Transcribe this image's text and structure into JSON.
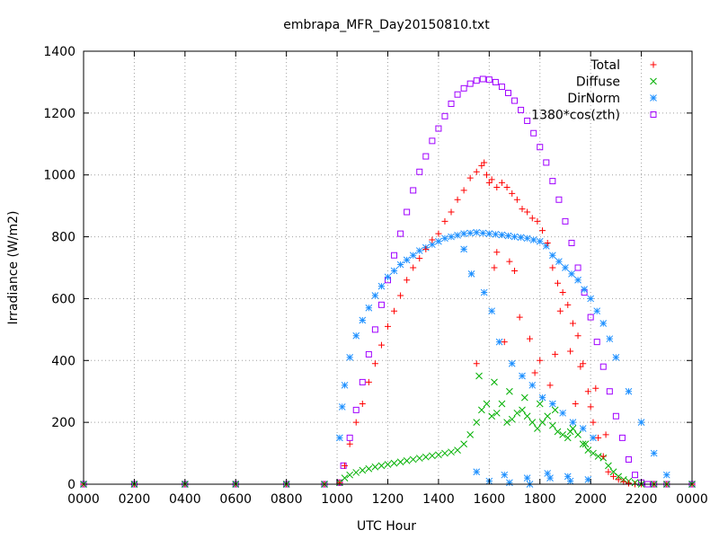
{
  "chart_data": {
    "type": "scatter",
    "title": "embrapa_MFR_Day20150810.txt",
    "xlabel": "UTC Hour",
    "ylabel": "Irradiance (W/m2)",
    "xlim": [
      0,
      24
    ],
    "ylim": [
      0,
      1400
    ],
    "grid": true,
    "legend_position": "top-right",
    "x_tick_values": [
      0,
      2,
      4,
      6,
      8,
      10,
      12,
      14,
      16,
      18,
      20,
      22,
      24
    ],
    "x_tick_labels": [
      "0000",
      "0200",
      "0400",
      "0600",
      "0800",
      "1000",
      "1200",
      "1400",
      "1600",
      "1800",
      "2000",
      "2200",
      "0000"
    ],
    "y_ticks": [
      0,
      200,
      400,
      600,
      800,
      1000,
      1200,
      1400
    ],
    "series": [
      {
        "name": "Total",
        "marker": "+",
        "color": "#ff0000",
        "x": [
          0,
          2,
          4,
          6,
          8,
          9.5,
          10.1,
          10.3,
          10.5,
          10.75,
          11,
          11.25,
          11.5,
          11.75,
          12,
          12.25,
          12.5,
          12.75,
          13,
          13.25,
          13.5,
          13.75,
          14,
          14.25,
          14.5,
          14.75,
          15,
          15.25,
          15.5,
          15.7,
          15.9,
          16.1,
          16.3,
          16.5,
          16.7,
          16.9,
          17.1,
          17.3,
          17.5,
          17.7,
          17.9,
          18.1,
          18.3,
          18.5,
          18.7,
          18.9,
          19.1,
          19.3,
          19.5,
          19.7,
          19.9,
          20.1,
          20.3,
          20.5,
          20.7,
          20.9,
          21.1,
          21.3,
          21.5,
          21.75,
          22,
          22.5,
          23,
          24,
          15.8,
          16.0,
          16.2,
          16.6,
          16.8,
          17.2,
          17.6,
          18.0,
          18.4,
          18.8,
          19.2,
          19.6,
          20.0,
          15.5,
          16.3,
          17.0,
          17.8,
          18.6,
          19.4,
          20.2,
          20.6
        ],
        "y": [
          0,
          0,
          0,
          0,
          0,
          0,
          5,
          60,
          130,
          200,
          260,
          330,
          390,
          450,
          510,
          560,
          610,
          660,
          700,
          730,
          760,
          790,
          810,
          850,
          880,
          920,
          950,
          990,
          1010,
          1030,
          1000,
          985,
          960,
          975,
          960,
          940,
          920,
          890,
          880,
          860,
          850,
          820,
          780,
          700,
          650,
          620,
          580,
          520,
          480,
          390,
          300,
          200,
          150,
          90,
          40,
          25,
          15,
          8,
          3,
          0,
          0,
          0,
          0,
          0,
          1040,
          975,
          700,
          460,
          720,
          540,
          470,
          400,
          320,
          560,
          430,
          380,
          250,
          390,
          750,
          690,
          360,
          420,
          260,
          310,
          160
        ]
      },
      {
        "name": "Diffuse",
        "marker": "x",
        "color": "#00b000",
        "x": [
          0,
          2,
          4,
          6,
          8,
          9.5,
          10.1,
          10.3,
          10.5,
          10.75,
          11,
          11.25,
          11.5,
          11.75,
          12,
          12.25,
          12.5,
          12.75,
          13,
          13.25,
          13.5,
          13.75,
          14,
          14.25,
          14.5,
          14.75,
          15,
          15.25,
          15.5,
          15.7,
          15.9,
          16.1,
          16.3,
          16.5,
          16.7,
          16.9,
          17.1,
          17.3,
          17.5,
          17.7,
          17.9,
          18.1,
          18.3,
          18.5,
          18.7,
          18.9,
          19.1,
          19.3,
          19.5,
          19.7,
          19.9,
          20.1,
          20.3,
          20.5,
          20.7,
          20.9,
          21.1,
          21.3,
          21.5,
          21.75,
          22,
          22.5,
          23,
          24,
          15.6,
          16.2,
          16.8,
          17.4,
          18.0,
          18.6,
          19.2,
          19.8
        ],
        "y": [
          0,
          0,
          0,
          0,
          0,
          0,
          5,
          20,
          30,
          38,
          45,
          50,
          56,
          60,
          64,
          68,
          72,
          76,
          80,
          84,
          88,
          92,
          95,
          100,
          104,
          110,
          130,
          160,
          200,
          240,
          260,
          220,
          230,
          260,
          200,
          210,
          230,
          240,
          220,
          200,
          180,
          200,
          220,
          190,
          170,
          160,
          150,
          180,
          160,
          130,
          110,
          100,
          90,
          85,
          60,
          40,
          25,
          15,
          10,
          5,
          0,
          0,
          0,
          0,
          350,
          330,
          300,
          280,
          260,
          240,
          170,
          130
        ]
      },
      {
        "name": "DirNorm",
        "marker": "*",
        "color": "#1e90ff",
        "x": [
          0,
          2,
          4,
          6,
          8,
          9.5,
          10.1,
          10.2,
          10.3,
          10.5,
          10.75,
          11,
          11.25,
          11.5,
          11.75,
          12,
          12.25,
          12.5,
          12.75,
          13,
          13.25,
          13.5,
          13.75,
          14,
          14.25,
          14.5,
          14.75,
          15,
          15.25,
          15.5,
          15.75,
          16,
          16.25,
          16.5,
          16.75,
          17,
          17.25,
          17.5,
          17.75,
          18,
          18.25,
          18.5,
          18.75,
          19,
          19.25,
          19.5,
          19.75,
          20,
          20.25,
          20.5,
          20.75,
          21,
          21.5,
          22,
          22.5,
          23,
          24,
          15.0,
          15.3,
          15.8,
          16.1,
          16.4,
          16.9,
          17.3,
          17.7,
          18.1,
          18.5,
          18.9,
          19.3,
          19.7,
          20.1,
          15.5,
          16.6,
          17.5,
          18.3,
          19.1,
          19.9,
          16.0,
          16.8,
          17.6,
          18.4,
          19.2
        ],
        "y": [
          0,
          0,
          0,
          0,
          0,
          0,
          150,
          250,
          320,
          410,
          480,
          530,
          570,
          610,
          640,
          670,
          690,
          710,
          725,
          740,
          755,
          765,
          775,
          785,
          795,
          800,
          805,
          810,
          812,
          814,
          812,
          810,
          808,
          806,
          803,
          800,
          798,
          795,
          790,
          785,
          770,
          740,
          720,
          700,
          680,
          660,
          630,
          600,
          560,
          520,
          470,
          410,
          300,
          200,
          100,
          30,
          0,
          760,
          680,
          620,
          560,
          460,
          390,
          350,
          320,
          280,
          260,
          230,
          200,
          180,
          150,
          40,
          30,
          20,
          35,
          25,
          15,
          10,
          5,
          0,
          20,
          10
        ]
      },
      {
        "name": "1380*cos(zth)",
        "marker": "square",
        "color": "#a000ff",
        "x": [
          0,
          2,
          4,
          6,
          8,
          9.5,
          10.1,
          10.25,
          10.5,
          10.75,
          11,
          11.25,
          11.5,
          11.75,
          12,
          12.25,
          12.5,
          12.75,
          13,
          13.25,
          13.5,
          13.75,
          14,
          14.25,
          14.5,
          14.75,
          15,
          15.25,
          15.5,
          15.75,
          16,
          16.25,
          16.5,
          16.75,
          17,
          17.25,
          17.5,
          17.75,
          18,
          18.25,
          18.5,
          18.75,
          19,
          19.25,
          19.5,
          19.75,
          20,
          20.25,
          20.5,
          20.75,
          21,
          21.25,
          21.5,
          21.75,
          22,
          22.25,
          22.5,
          23,
          24
        ],
        "y": [
          0,
          0,
          0,
          0,
          0,
          0,
          5,
          60,
          150,
          240,
          330,
          420,
          500,
          580,
          660,
          740,
          810,
          880,
          950,
          1010,
          1060,
          1110,
          1150,
          1190,
          1230,
          1260,
          1280,
          1295,
          1305,
          1310,
          1308,
          1300,
          1285,
          1265,
          1240,
          1210,
          1175,
          1135,
          1090,
          1040,
          980,
          920,
          850,
          780,
          700,
          620,
          540,
          460,
          380,
          300,
          220,
          150,
          80,
          30,
          5,
          0,
          0,
          0,
          0
        ]
      }
    ]
  }
}
